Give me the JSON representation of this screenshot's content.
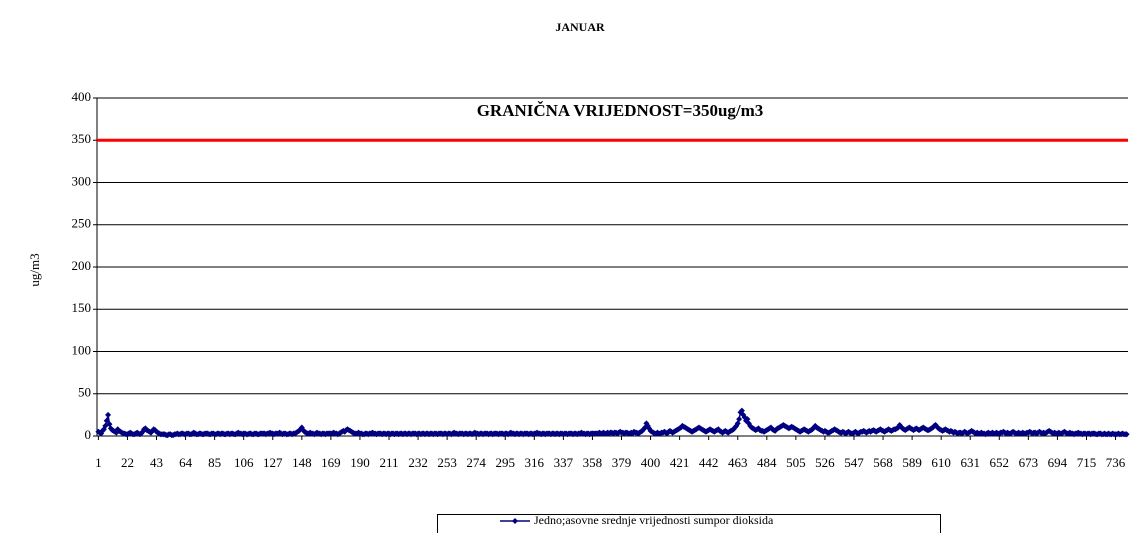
{
  "chart_data": {
    "type": "line",
    "title": "JANUAR",
    "y_label": "ug/m3",
    "annotation": "GRANIČNA VRIJEDNOST=350ug/m3",
    "threshold": 350,
    "threshold_color": "#ff0000",
    "ylim": [
      0,
      400
    ],
    "yticks": [
      0,
      50,
      100,
      150,
      200,
      250,
      300,
      350,
      400
    ],
    "grid": true,
    "xlim": [
      0,
      745
    ],
    "xticks": [
      1,
      22,
      43,
      64,
      85,
      106,
      127,
      148,
      169,
      190,
      211,
      232,
      253,
      274,
      295,
      316,
      337,
      358,
      379,
      400,
      421,
      442,
      463,
      484,
      505,
      526,
      547,
      568,
      589,
      610,
      631,
      652,
      673,
      694,
      715,
      736
    ],
    "legend": "bottom",
    "x": [
      1,
      2,
      3,
      4,
      5,
      6,
      7,
      8,
      9,
      10,
      11,
      12,
      13,
      14,
      15,
      16,
      17,
      18,
      19,
      20,
      21,
      22,
      23,
      24,
      25,
      26,
      27,
      28,
      29,
      30,
      31,
      32,
      33,
      34,
      35,
      36,
      37,
      38,
      39,
      40,
      41,
      42,
      43,
      44,
      45,
      46,
      47,
      48,
      49,
      50,
      51,
      52,
      53,
      54,
      55,
      56,
      57,
      58,
      59,
      60,
      61,
      62,
      63,
      64,
      65,
      66,
      67,
      68,
      69,
      70,
      71,
      72,
      73,
      74,
      75,
      76,
      77,
      78,
      79,
      80,
      81,
      82,
      83,
      84,
      85,
      86,
      87,
      88,
      89,
      90,
      91,
      92,
      93,
      94,
      95,
      96,
      97,
      98,
      99,
      100,
      101,
      102,
      103,
      104,
      105,
      106,
      107,
      108,
      109,
      110,
      111,
      112,
      113,
      114,
      115,
      116,
      117,
      118,
      119,
      120,
      121,
      122,
      123,
      124,
      125,
      126,
      127,
      128,
      129,
      130,
      131,
      132,
      133,
      134,
      135,
      136,
      137,
      138,
      139,
      140,
      141,
      142,
      143,
      144,
      145,
      146,
      147,
      148,
      149,
      150,
      151,
      152,
      153,
      154,
      155,
      156,
      157,
      158,
      159,
      160,
      161,
      162,
      163,
      164,
      165,
      166,
      167,
      168,
      169,
      170,
      171,
      172,
      173,
      174,
      175,
      176,
      177,
      178,
      179,
      180,
      181,
      182,
      183,
      184,
      185,
      186,
      187,
      188,
      189,
      190,
      191,
      192,
      193,
      194,
      195,
      196,
      197,
      198,
      199,
      200,
      201,
      202,
      203,
      204,
      205,
      206,
      207,
      208,
      209,
      210,
      211,
      212,
      213,
      214,
      215,
      216,
      217,
      218,
      219,
      220,
      221,
      222,
      223,
      224,
      225,
      226,
      227,
      228,
      229,
      230,
      231,
      232,
      233,
      234,
      235,
      236,
      237,
      238,
      239,
      240,
      241,
      242,
      243,
      244,
      245,
      246,
      247,
      248,
      249,
      250,
      251,
      252,
      253,
      254,
      255,
      256,
      257,
      258,
      259,
      260,
      261,
      262,
      263,
      264,
      265,
      266,
      267,
      268,
      269,
      270,
      271,
      272,
      273,
      274,
      275,
      276,
      277,
      278,
      279,
      280,
      281,
      282,
      283,
      284,
      285,
      286,
      287,
      288,
      289,
      290,
      291,
      292,
      293,
      294,
      295,
      296,
      297,
      298,
      299,
      300,
      301,
      302,
      303,
      304,
      305,
      306,
      307,
      308,
      309,
      310,
      311,
      312,
      313,
      314,
      315,
      316,
      317,
      318,
      319,
      320,
      321,
      322,
      323,
      324,
      325,
      326,
      327,
      328,
      329,
      330,
      331,
      332,
      333,
      334,
      335,
      336,
      337,
      338,
      339,
      340,
      341,
      342,
      343,
      344,
      345,
      346,
      347,
      348,
      349,
      350,
      351,
      352,
      353,
      354,
      355,
      356,
      357,
      358,
      359,
      360,
      361,
      362,
      363,
      364,
      365,
      366,
      367,
      368,
      369,
      370,
      371,
      372,
      373,
      374,
      375,
      376,
      377,
      378,
      379,
      380,
      381,
      382,
      383,
      384,
      385,
      386,
      387,
      388,
      389,
      390,
      391,
      392,
      393,
      394,
      395,
      396,
      397,
      398,
      399,
      400,
      401,
      402,
      403,
      404,
      405,
      406,
      407,
      408,
      409,
      410,
      411,
      412,
      413,
      414,
      415,
      416,
      417,
      418,
      419,
      420,
      421,
      422,
      423,
      424,
      425,
      426,
      427,
      428,
      429,
      430,
      431,
      432,
      433,
      434,
      435,
      436,
      437,
      438,
      439,
      440,
      441,
      442,
      443,
      444,
      445,
      446,
      447,
      448,
      449,
      450,
      451,
      452,
      453,
      454,
      455,
      456,
      457,
      458,
      459,
      460,
      461,
      462,
      463,
      464,
      465,
      466,
      467,
      468,
      469,
      470,
      471,
      472,
      473,
      474,
      475,
      476,
      477,
      478,
      479,
      480,
      481,
      482,
      483,
      484,
      485,
      486,
      487,
      488,
      489,
      490,
      491,
      492,
      493,
      494,
      495,
      496,
      497,
      498,
      499,
      500,
      501,
      502,
      503,
      504,
      505,
      506,
      507,
      508,
      509,
      510,
      511,
      512,
      513,
      514,
      515,
      516,
      517,
      518,
      519,
      520,
      521,
      522,
      523,
      524,
      525,
      526,
      527,
      528,
      529,
      530,
      531,
      532,
      533,
      534,
      535,
      536,
      537,
      538,
      539,
      540,
      541,
      542,
      543,
      544,
      545,
      546,
      547,
      548,
      549,
      550,
      551,
      552,
      553,
      554,
      555,
      556,
      557,
      558,
      559,
      560,
      561,
      562,
      563,
      564,
      565,
      566,
      567,
      568,
      569,
      570,
      571,
      572,
      573,
      574,
      575,
      576,
      577,
      578,
      579,
      580,
      581,
      582,
      583,
      584,
      585,
      586,
      587,
      588,
      589,
      590,
      591,
      592,
      593,
      594,
      595,
      596,
      597,
      598,
      599,
      600,
      601,
      602,
      603,
      604,
      605,
      606,
      607,
      608,
      609,
      610,
      611,
      612,
      613,
      614,
      615,
      616,
      617,
      618,
      619,
      620,
      621,
      622,
      623,
      624,
      625,
      626,
      627,
      628,
      629,
      630,
      631,
      632,
      633,
      634,
      635,
      636,
      637,
      638,
      639,
      640,
      641,
      642,
      643,
      644,
      645,
      646,
      647,
      648,
      649,
      650,
      651,
      652,
      653,
      654,
      655,
      656,
      657,
      658,
      659,
      660,
      661,
      662,
      663,
      664,
      665,
      666,
      667,
      668,
      669,
      670,
      671,
      672,
      673,
      674,
      675,
      676,
      677,
      678,
      679,
      680,
      681,
      682,
      683,
      684,
      685,
      686,
      687,
      688,
      689,
      690,
      691,
      692,
      693,
      694,
      695,
      696,
      697,
      698,
      699,
      700,
      701,
      702,
      703,
      704,
      705,
      706,
      707,
      708,
      709,
      710,
      711,
      712,
      713,
      714,
      715,
      716,
      717,
      718,
      719,
      720,
      721,
      722,
      723,
      724,
      725,
      726,
      727,
      728,
      729,
      730,
      731,
      732,
      733,
      734,
      735,
      736,
      737,
      738,
      739,
      740,
      741,
      742,
      743,
      744
    ],
    "series": [
      {
        "name": "Jedno;asovne srednje vrijednosti sumpor dioksida",
        "color": "#000080",
        "values": [
          5,
          4,
          3,
          6,
          8,
          12,
          18,
          25,
          14,
          9,
          7,
          6,
          5,
          4,
          8,
          6,
          5,
          4,
          3,
          3,
          2,
          2,
          3,
          4,
          3,
          2,
          2,
          3,
          4,
          3,
          2,
          3,
          5,
          8,
          9,
          7,
          6,
          5,
          4,
          6,
          8,
          7,
          5,
          4,
          3,
          2,
          2,
          2,
          2,
          1,
          1,
          2,
          2,
          1,
          1,
          2,
          2,
          3,
          2,
          2,
          3,
          3,
          2,
          2,
          3,
          3,
          2,
          2,
          3,
          4,
          3,
          2,
          2,
          3,
          3,
          2,
          2,
          3,
          3,
          3,
          2,
          2,
          3,
          3,
          2,
          2,
          3,
          3,
          2,
          3,
          3,
          2,
          2,
          3,
          3,
          2,
          3,
          3,
          2,
          2,
          3,
          4,
          3,
          3,
          2,
          3,
          3,
          2,
          2,
          3,
          3,
          2,
          2,
          3,
          3,
          2,
          2,
          3,
          3,
          3,
          3,
          2,
          3,
          3,
          4,
          3,
          3,
          2,
          3,
          3,
          3,
          4,
          3,
          2,
          3,
          3,
          2,
          2,
          3,
          3,
          2,
          3,
          3,
          4,
          5,
          6,
          8,
          10,
          7,
          5,
          4,
          3,
          3,
          4,
          3,
          3,
          2,
          3,
          4,
          3,
          3,
          2,
          3,
          3,
          2,
          3,
          3,
          3,
          3,
          3,
          4,
          3,
          3,
          2,
          3,
          4,
          5,
          6,
          5,
          7,
          8,
          7,
          6,
          5,
          4,
          3,
          3,
          3,
          4,
          3,
          3,
          2,
          2,
          3,
          3,
          2,
          3,
          3,
          4,
          3,
          3,
          2,
          3,
          3,
          3,
          2,
          3,
          3,
          2,
          3,
          3,
          2,
          3,
          3,
          2,
          3,
          3,
          2,
          3,
          3,
          2,
          3,
          3,
          2,
          3,
          3,
          2,
          3,
          3,
          3,
          2,
          3,
          3,
          2,
          3,
          3,
          2,
          3,
          3,
          2,
          3,
          3,
          2,
          3,
          3,
          2,
          3,
          3,
          3,
          2,
          3,
          3,
          2,
          3,
          3,
          2,
          3,
          4,
          3,
          3,
          2,
          3,
          3,
          3,
          2,
          3,
          3,
          2,
          3,
          3,
          2,
          3,
          4,
          3,
          3,
          2,
          3,
          3,
          2,
          3,
          3,
          3,
          2,
          3,
          3,
          2,
          3,
          3,
          3,
          2,
          3,
          3,
          3,
          2,
          3,
          3,
          2,
          3,
          4,
          3,
          3,
          2,
          3,
          3,
          2,
          3,
          3,
          2,
          3,
          3,
          3,
          2,
          3,
          3,
          2,
          3,
          3,
          4,
          3,
          3,
          2,
          3,
          3,
          2,
          3,
          3,
          3,
          2,
          3,
          3,
          2,
          3,
          3,
          2,
          3,
          3,
          2,
          3,
          3,
          2,
          3,
          3,
          3,
          2,
          3,
          3,
          2,
          3,
          3,
          4,
          3,
          3,
          2,
          3,
          3,
          2,
          3,
          3,
          3,
          3,
          3,
          3,
          4,
          3,
          3,
          4,
          3,
          3,
          4,
          3,
          4,
          4,
          3,
          4,
          4,
          3,
          4,
          5,
          4,
          4,
          3,
          4,
          4,
          3,
          3,
          4,
          3,
          5,
          4,
          4,
          3,
          4,
          5,
          6,
          8,
          10,
          15,
          12,
          9,
          6,
          5,
          4,
          3,
          3,
          4,
          3,
          3,
          4,
          4,
          5,
          4,
          3,
          5,
          6,
          5,
          4,
          5,
          6,
          7,
          8,
          9,
          10,
          12,
          11,
          10,
          9,
          8,
          7,
          6,
          5,
          6,
          7,
          8,
          9,
          10,
          9,
          8,
          7,
          6,
          5,
          6,
          7,
          8,
          7,
          6,
          5,
          6,
          7,
          8,
          6,
          5,
          4,
          5,
          6,
          5,
          4,
          5,
          6,
          7,
          8,
          10,
          12,
          15,
          20,
          28,
          30,
          25,
          22,
          18,
          20,
          15,
          12,
          10,
          9,
          8,
          7,
          8,
          9,
          7,
          6,
          6,
          5,
          6,
          7,
          8,
          9,
          10,
          8,
          7,
          6,
          8,
          9,
          10,
          11,
          12,
          13,
          12,
          11,
          10,
          9,
          10,
          11,
          10,
          9,
          8,
          7,
          6,
          5,
          6,
          7,
          8,
          7,
          6,
          5,
          6,
          7,
          8,
          10,
          12,
          10,
          9,
          8,
          7,
          6,
          5,
          6,
          5,
          4,
          4,
          5,
          6,
          7,
          8,
          7,
          6,
          5,
          4,
          4,
          5,
          4,
          3,
          4,
          5,
          4,
          3,
          3,
          4,
          5,
          4,
          3,
          4,
          5,
          5,
          6,
          5,
          4,
          5,
          6,
          5,
          6,
          7,
          6,
          5,
          6,
          7,
          8,
          7,
          6,
          5,
          6,
          7,
          8,
          7,
          6,
          7,
          8,
          8,
          9,
          10,
          13,
          11,
          9,
          8,
          7,
          8,
          9,
          10,
          9,
          8,
          7,
          8,
          9,
          8,
          7,
          8,
          9,
          10,
          9,
          8,
          7,
          7,
          8,
          9,
          10,
          12,
          13,
          11,
          9,
          8,
          7,
          6,
          7,
          8,
          7,
          6,
          5,
          6,
          5,
          4,
          5,
          4,
          3,
          4,
          4,
          3,
          4,
          5,
          4,
          3,
          4,
          5,
          6,
          5,
          4,
          3,
          4,
          3,
          3,
          4,
          3,
          3,
          2,
          3,
          4,
          3,
          3,
          4,
          3,
          3,
          4,
          3,
          3,
          4,
          4,
          5,
          4,
          3,
          4,
          3,
          3,
          4,
          5,
          4,
          3,
          3,
          4,
          3,
          3,
          4,
          3,
          3,
          4,
          4,
          5,
          4,
          3,
          4,
          4,
          3,
          4,
          5,
          4,
          3,
          4,
          3,
          4,
          5,
          6,
          5,
          4,
          3,
          4,
          3,
          3,
          4,
          3,
          3,
          4,
          5,
          4,
          3,
          3,
          4,
          3,
          3,
          2,
          3,
          3,
          4,
          3,
          3,
          2,
          3,
          3,
          2,
          3,
          3,
          2,
          3,
          3,
          3,
          2,
          2,
          3,
          3,
          2,
          2,
          3,
          2,
          2,
          3,
          2,
          2,
          3,
          2,
          2,
          2,
          3,
          2,
          2,
          3,
          2,
          2,
          2
        ]
      }
    ]
  }
}
